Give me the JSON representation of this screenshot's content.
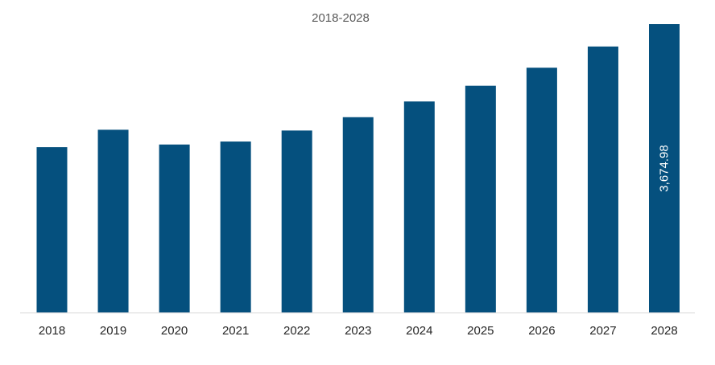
{
  "chart_data": {
    "type": "bar",
    "title": "2018-2028",
    "xlabel": "",
    "ylabel": "",
    "categories": [
      "2018",
      "2019",
      "2020",
      "2021",
      "2022",
      "2023",
      "2024",
      "2025",
      "2026",
      "2027",
      "2028"
    ],
    "values": [
      2108,
      2330,
      2142,
      2180,
      2320,
      2490,
      2690,
      2890,
      3120,
      3390,
      3674.98
    ],
    "ylim": [
      0,
      3674.98
    ],
    "data_labels": [
      {
        "category": "2028",
        "text": "3,674.98"
      }
    ],
    "grid": false,
    "legend": "none",
    "colors": {
      "bar": "#05507E",
      "axis": "#D9D9D9",
      "title": "#595959",
      "tick_label": "#262626",
      "data_label": "#FFFFFF"
    }
  }
}
